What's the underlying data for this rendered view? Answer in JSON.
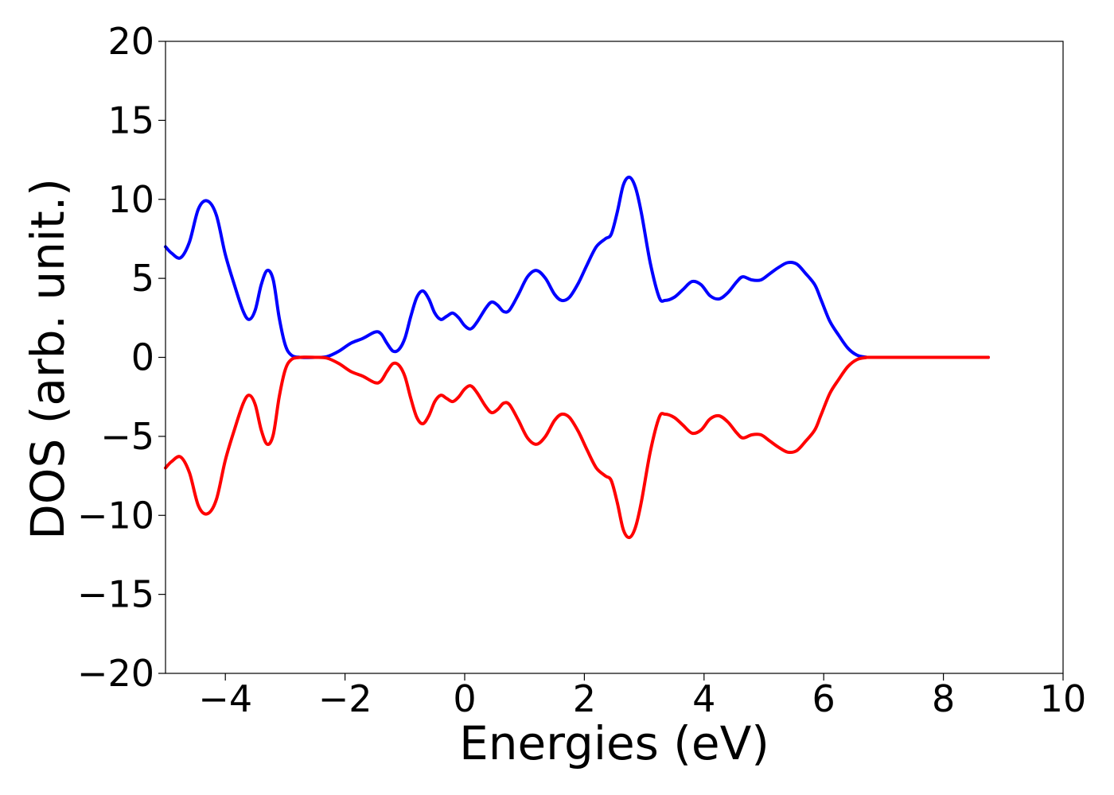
{
  "chart_data": {
    "type": "line",
    "xlabel": "Energies (eV)",
    "ylabel": "DOS (arb. unit.)",
    "xlim": [
      -5,
      10
    ],
    "ylim": [
      -20,
      20
    ],
    "xticks": [
      -4,
      -2,
      0,
      2,
      4,
      6,
      8,
      10
    ],
    "xtick_labels": [
      "−4",
      "−2",
      "0",
      "2",
      "4",
      "6",
      "8",
      "10"
    ],
    "yticks": [
      20,
      15,
      10,
      5,
      0,
      -5,
      -10,
      -15,
      -20
    ],
    "ytick_labels": [
      "20",
      "15",
      "10",
      "5",
      "0",
      "−5",
      "−10",
      "−15",
      "−20"
    ],
    "grid": false,
    "legend": "none",
    "series": [
      {
        "color": "#0000ff",
        "points": [
          [
            -5.0,
            7.0
          ],
          [
            -4.9,
            6.6
          ],
          [
            -4.75,
            6.3
          ],
          [
            -4.6,
            7.3
          ],
          [
            -4.45,
            9.4
          ],
          [
            -4.3,
            9.9
          ],
          [
            -4.15,
            9.0
          ],
          [
            -4.0,
            6.5
          ],
          [
            -3.85,
            4.6
          ],
          [
            -3.7,
            2.9
          ],
          [
            -3.6,
            2.4
          ],
          [
            -3.5,
            3.0
          ],
          [
            -3.4,
            4.6
          ],
          [
            -3.3,
            5.5
          ],
          [
            -3.2,
            4.9
          ],
          [
            -3.1,
            2.5
          ],
          [
            -3.0,
            0.8
          ],
          [
            -2.9,
            0.15
          ],
          [
            -2.75,
            0.0
          ],
          [
            -2.5,
            0.0
          ],
          [
            -2.3,
            0.05
          ],
          [
            -2.1,
            0.4
          ],
          [
            -1.9,
            0.9
          ],
          [
            -1.7,
            1.2
          ],
          [
            -1.5,
            1.6
          ],
          [
            -1.4,
            1.5
          ],
          [
            -1.3,
            0.9
          ],
          [
            -1.2,
            0.4
          ],
          [
            -1.1,
            0.5
          ],
          [
            -1.0,
            1.2
          ],
          [
            -0.9,
            2.6
          ],
          [
            -0.8,
            3.8
          ],
          [
            -0.7,
            4.2
          ],
          [
            -0.6,
            3.7
          ],
          [
            -0.5,
            2.8
          ],
          [
            -0.4,
            2.4
          ],
          [
            -0.3,
            2.6
          ],
          [
            -0.2,
            2.8
          ],
          [
            -0.1,
            2.5
          ],
          [
            0.0,
            2.0
          ],
          [
            0.1,
            1.8
          ],
          [
            0.2,
            2.2
          ],
          [
            0.35,
            3.1
          ],
          [
            0.45,
            3.5
          ],
          [
            0.55,
            3.3
          ],
          [
            0.65,
            2.9
          ],
          [
            0.75,
            3.0
          ],
          [
            0.9,
            4.0
          ],
          [
            1.05,
            5.1
          ],
          [
            1.2,
            5.5
          ],
          [
            1.35,
            5.0
          ],
          [
            1.5,
            4.0
          ],
          [
            1.62,
            3.6
          ],
          [
            1.75,
            3.8
          ],
          [
            1.9,
            4.7
          ],
          [
            2.05,
            5.9
          ],
          [
            2.2,
            7.0
          ],
          [
            2.35,
            7.5
          ],
          [
            2.45,
            7.8
          ],
          [
            2.55,
            9.2
          ],
          [
            2.65,
            10.9
          ],
          [
            2.75,
            11.4
          ],
          [
            2.85,
            10.8
          ],
          [
            2.95,
            9.2
          ],
          [
            3.1,
            6.0
          ],
          [
            3.25,
            3.8
          ],
          [
            3.35,
            3.6
          ],
          [
            3.5,
            3.8
          ],
          [
            3.65,
            4.3
          ],
          [
            3.8,
            4.8
          ],
          [
            3.95,
            4.6
          ],
          [
            4.1,
            3.9
          ],
          [
            4.25,
            3.7
          ],
          [
            4.4,
            4.1
          ],
          [
            4.55,
            4.8
          ],
          [
            4.65,
            5.1
          ],
          [
            4.8,
            4.9
          ],
          [
            4.95,
            4.9
          ],
          [
            5.1,
            5.3
          ],
          [
            5.25,
            5.7
          ],
          [
            5.4,
            6.0
          ],
          [
            5.55,
            5.9
          ],
          [
            5.7,
            5.3
          ],
          [
            5.85,
            4.6
          ],
          [
            5.95,
            3.7
          ],
          [
            6.1,
            2.3
          ],
          [
            6.25,
            1.4
          ],
          [
            6.4,
            0.6
          ],
          [
            6.55,
            0.15
          ],
          [
            6.7,
            0.02
          ],
          [
            6.9,
            0.0
          ],
          [
            8.75,
            0.0
          ]
        ]
      },
      {
        "color": "#ff0000",
        "points": [
          [
            -5.0,
            -7.0
          ],
          [
            -4.9,
            -6.6
          ],
          [
            -4.75,
            -6.3
          ],
          [
            -4.6,
            -7.3
          ],
          [
            -4.45,
            -9.4
          ],
          [
            -4.3,
            -9.9
          ],
          [
            -4.15,
            -9.0
          ],
          [
            -4.0,
            -6.5
          ],
          [
            -3.85,
            -4.6
          ],
          [
            -3.7,
            -2.9
          ],
          [
            -3.6,
            -2.4
          ],
          [
            -3.5,
            -3.0
          ],
          [
            -3.4,
            -4.6
          ],
          [
            -3.3,
            -5.5
          ],
          [
            -3.2,
            -4.9
          ],
          [
            -3.1,
            -2.5
          ],
          [
            -3.0,
            -0.8
          ],
          [
            -2.9,
            -0.15
          ],
          [
            -2.75,
            0.0
          ],
          [
            -2.5,
            0.0
          ],
          [
            -2.3,
            -0.05
          ],
          [
            -2.1,
            -0.4
          ],
          [
            -1.9,
            -0.9
          ],
          [
            -1.7,
            -1.2
          ],
          [
            -1.5,
            -1.6
          ],
          [
            -1.4,
            -1.5
          ],
          [
            -1.3,
            -0.9
          ],
          [
            -1.2,
            -0.4
          ],
          [
            -1.1,
            -0.5
          ],
          [
            -1.0,
            -1.2
          ],
          [
            -0.9,
            -2.6
          ],
          [
            -0.8,
            -3.8
          ],
          [
            -0.7,
            -4.2
          ],
          [
            -0.6,
            -3.7
          ],
          [
            -0.5,
            -2.8
          ],
          [
            -0.4,
            -2.4
          ],
          [
            -0.3,
            -2.6
          ],
          [
            -0.2,
            -2.8
          ],
          [
            -0.1,
            -2.5
          ],
          [
            0.0,
            -2.0
          ],
          [
            0.1,
            -1.8
          ],
          [
            0.2,
            -2.2
          ],
          [
            0.35,
            -3.1
          ],
          [
            0.45,
            -3.5
          ],
          [
            0.55,
            -3.3
          ],
          [
            0.65,
            -2.9
          ],
          [
            0.75,
            -3.0
          ],
          [
            0.9,
            -4.0
          ],
          [
            1.05,
            -5.1
          ],
          [
            1.2,
            -5.5
          ],
          [
            1.35,
            -5.0
          ],
          [
            1.5,
            -4.0
          ],
          [
            1.62,
            -3.6
          ],
          [
            1.75,
            -3.8
          ],
          [
            1.9,
            -4.7
          ],
          [
            2.05,
            -5.9
          ],
          [
            2.2,
            -7.0
          ],
          [
            2.35,
            -7.5
          ],
          [
            2.45,
            -7.8
          ],
          [
            2.55,
            -9.2
          ],
          [
            2.65,
            -10.9
          ],
          [
            2.75,
            -11.4
          ],
          [
            2.85,
            -10.8
          ],
          [
            2.95,
            -9.2
          ],
          [
            3.1,
            -6.0
          ],
          [
            3.25,
            -3.8
          ],
          [
            3.35,
            -3.6
          ],
          [
            3.5,
            -3.8
          ],
          [
            3.65,
            -4.3
          ],
          [
            3.8,
            -4.8
          ],
          [
            3.95,
            -4.6
          ],
          [
            4.1,
            -3.9
          ],
          [
            4.25,
            -3.7
          ],
          [
            4.4,
            -4.1
          ],
          [
            4.55,
            -4.8
          ],
          [
            4.65,
            -5.1
          ],
          [
            4.8,
            -4.9
          ],
          [
            4.95,
            -4.9
          ],
          [
            5.1,
            -5.3
          ],
          [
            5.25,
            -5.7
          ],
          [
            5.4,
            -6.0
          ],
          [
            5.55,
            -5.9
          ],
          [
            5.7,
            -5.3
          ],
          [
            5.85,
            -4.6
          ],
          [
            5.95,
            -3.7
          ],
          [
            6.1,
            -2.3
          ],
          [
            6.25,
            -1.4
          ],
          [
            6.4,
            -0.6
          ],
          [
            6.55,
            -0.15
          ],
          [
            6.7,
            -0.02
          ],
          [
            6.9,
            0.0
          ],
          [
            8.75,
            0.0
          ]
        ]
      }
    ]
  }
}
